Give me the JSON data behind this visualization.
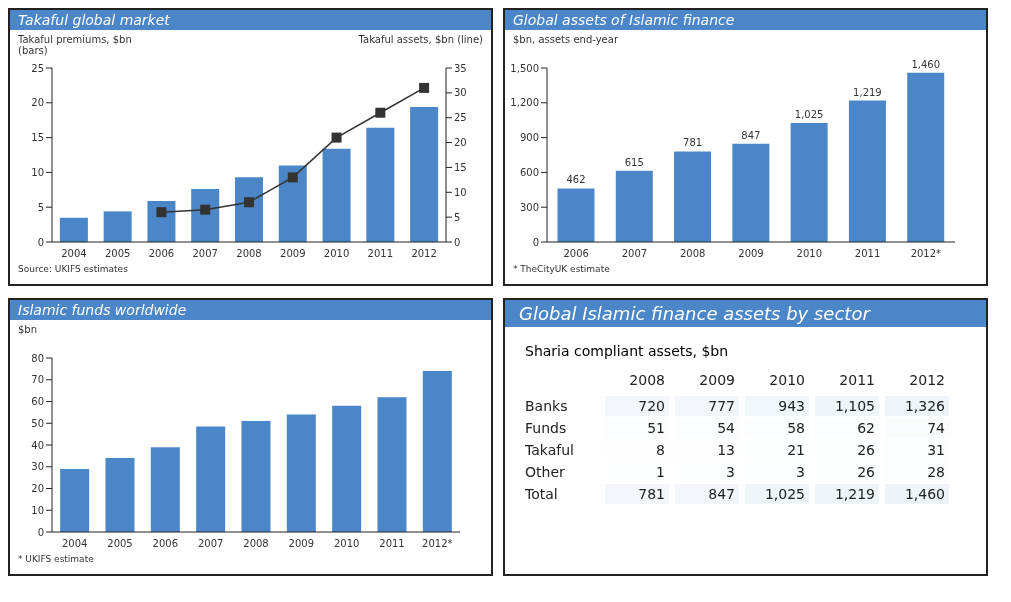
{
  "chart_data": [
    {
      "type": "bar",
      "title": "Takaful global market",
      "ylabel": "Takaful premiums, $bn (bars)",
      "y2label": "Takaful assets, $bn (line)",
      "categories": [
        "2004",
        "2005",
        "2006",
        "2007",
        "2008",
        "2009",
        "2010",
        "2011",
        "2012"
      ],
      "series": [
        {
          "type": "bar",
          "color": "#4a86c8",
          "values": [
            3.5,
            4.4,
            5.9,
            7.6,
            9.3,
            11.0,
            13.4,
            16.4,
            19.4
          ]
        },
        {
          "type": "line",
          "axis": "y2",
          "color": "#333333",
          "values": [
            null,
            null,
            6,
            6.5,
            8,
            13,
            21,
            26,
            31
          ]
        }
      ],
      "marker": "square",
      "ylim": [
        0,
        25
      ],
      "yticks": [
        0,
        5,
        10,
        15,
        20,
        25
      ],
      "y2lim": [
        0,
        35
      ],
      "y2ticks": [
        0,
        5,
        10,
        15,
        20,
        25,
        30,
        35
      ],
      "grid": false,
      "legend": false,
      "annotations": [
        "Source: UKIFS estimates"
      ]
    },
    {
      "type": "bar",
      "title": "Global assets of Islamic finance",
      "ylabel": "$bn, assets end-year",
      "categories": [
        "2006",
        "2007",
        "2008",
        "2009",
        "2010",
        "2011",
        "2012*"
      ],
      "series": [
        {
          "color": "#4a86c8",
          "values": [
            462,
            615,
            781,
            847,
            1025,
            1219,
            1460
          ],
          "value_labels": [
            "462",
            "615",
            "781",
            "847",
            "1,025",
            "1,219",
            "1,460"
          ]
        }
      ],
      "ylim": [
        0,
        1500
      ],
      "yticks": [
        0,
        300,
        600,
        900,
        {
          "value": 1200,
          "label": "1,200"
        },
        {
          "value": 1500,
          "label": "1,500"
        }
      ],
      "grid": false,
      "legend": false,
      "annotations": [
        "* TheCityUK estimate"
      ]
    },
    {
      "type": "bar",
      "title": "Islamic funds worldwide",
      "ylabel": "$bn",
      "categories": [
        "2004",
        "2005",
        "2006",
        "2007",
        "2008",
        "2009",
        "2010",
        "2011",
        "2012*"
      ],
      "series": [
        {
          "color": "#4a86c8",
          "values": [
            29,
            34,
            39,
            48.5,
            51,
            54,
            58,
            62,
            74
          ]
        }
      ],
      "ylim": [
        0,
        80
      ],
      "yticks": [
        0,
        10,
        20,
        30,
        40,
        50,
        60,
        70,
        80
      ],
      "grid": false,
      "legend": false,
      "annotations": [
        "* UKIFS estimate"
      ]
    },
    {
      "type": "heatmap",
      "title": "Global Islamic finance assets by sector",
      "subtitle": "Sharia compliant assets, $bn",
      "categories": [
        "2008",
        "2009",
        "2010",
        "2011",
        "2012"
      ],
      "y_categories": [
        "Banks",
        "Funds",
        "Takaful",
        "Other",
        "Total"
      ],
      "cells": [
        [
          720,
          777,
          943,
          1105,
          1326
        ],
        [
          51,
          54,
          58,
          62,
          74
        ],
        [
          8,
          13,
          21,
          26,
          31
        ],
        [
          1,
          3,
          3,
          26,
          28
        ],
        [
          781,
          847,
          1025,
          1219,
          1460
        ]
      ],
      "cell_labels": [
        [
          "720",
          "777",
          "943",
          "1,105",
          "1,326"
        ],
        [
          "51",
          "54",
          "58",
          "62",
          "74"
        ],
        [
          "8",
          "13",
          "21",
          "26",
          "31"
        ],
        [
          "1",
          "3",
          "3",
          "26",
          "28"
        ],
        [
          "781",
          "847",
          "1,025",
          "1,219",
          "1,460"
        ]
      ]
    }
  ]
}
